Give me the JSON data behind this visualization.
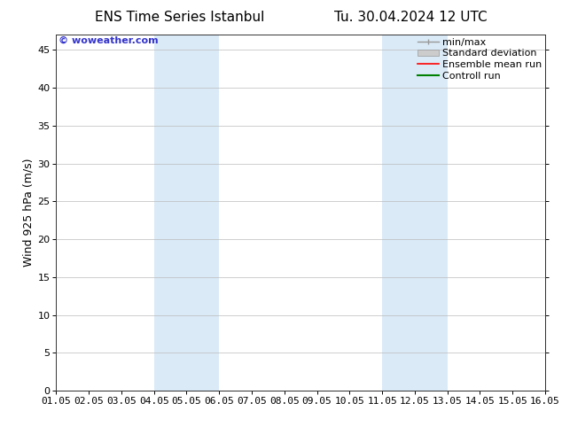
{
  "title": "ENS Time Series Istanbul",
  "title2": "Tu. 30.04.2024 12 UTC",
  "ylabel": "Wind 925 hPa (m/s)",
  "watermark": "© woweather.com",
  "ylim": [
    0,
    47
  ],
  "yticks": [
    0,
    5,
    10,
    15,
    20,
    25,
    30,
    35,
    40,
    45
  ],
  "xtick_labels": [
    "01.05",
    "02.05",
    "03.05",
    "04.05",
    "05.05",
    "06.05",
    "07.05",
    "08.05",
    "09.05",
    "10.05",
    "11.05",
    "12.05",
    "13.05",
    "14.05",
    "15.05",
    "16.05"
  ],
  "xvalues": [
    0,
    1,
    2,
    3,
    4,
    5,
    6,
    7,
    8,
    9,
    10,
    11,
    12,
    13,
    14,
    15
  ],
  "shaded_regions": [
    {
      "xstart": 3,
      "xend": 5,
      "color": "#daeaf7"
    },
    {
      "xstart": 10,
      "xend": 12,
      "color": "#daeaf7"
    }
  ],
  "background_color": "#ffffff",
  "plot_bg_color": "#ffffff",
  "grid_color": "#bbbbbb",
  "legend_items": [
    {
      "label": "min/max",
      "color": "#999999",
      "lw": 1,
      "style": "solid"
    },
    {
      "label": "Standard deviation",
      "color": "#cccccc",
      "lw": 6,
      "style": "solid"
    },
    {
      "label": "Ensemble mean run",
      "color": "#ff0000",
      "lw": 1.2,
      "style": "solid"
    },
    {
      "label": "Controll run",
      "color": "#008000",
      "lw": 1.5,
      "style": "solid"
    }
  ],
  "title_fontsize": 11,
  "axis_label_fontsize": 9,
  "tick_fontsize": 8,
  "legend_fontsize": 8,
  "watermark_color": "#3333cc",
  "watermark_fontsize": 8
}
